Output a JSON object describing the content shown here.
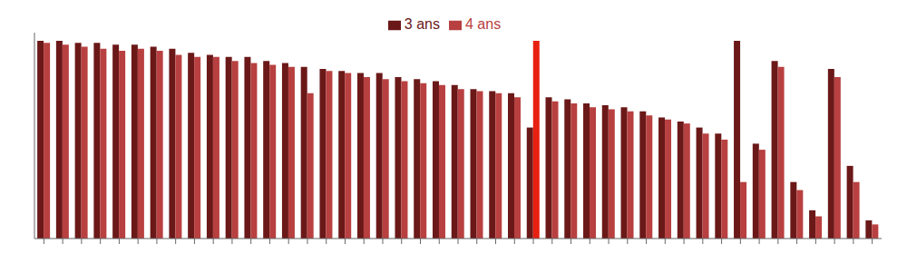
{
  "chart_data": {
    "type": "bar",
    "categories": [
      null,
      null,
      null,
      null,
      null,
      null,
      null,
      null,
      null,
      null,
      null,
      null,
      null,
      null,
      null,
      null,
      null,
      null,
      null,
      null,
      null,
      null,
      null,
      null,
      null,
      null,
      null,
      null,
      null,
      null,
      null,
      null,
      null,
      null,
      null,
      null,
      null,
      null,
      null,
      null,
      null,
      null,
      null,
      null,
      null
    ],
    "series": [
      {
        "name": "3 ans",
        "color": "#6B1818",
        "values": [
          98,
          98,
          97,
          97,
          96,
          96,
          95,
          94,
          92,
          91,
          90,
          90,
          88,
          87,
          85,
          84,
          83,
          82,
          82,
          80,
          79,
          78,
          76,
          74,
          73,
          72,
          55,
          70,
          69,
          67,
          66,
          65,
          63,
          60,
          58,
          55,
          52,
          98,
          47,
          88,
          28,
          14,
          84,
          36,
          9
        ]
      },
      {
        "name": "4 ans",
        "color": "#B84040",
        "colors": [
          "#B84040",
          "#B84040",
          "#B84040",
          "#B84040",
          "#B84040",
          "#B84040",
          "#B84040",
          "#B84040",
          "#B84040",
          "#B84040",
          "#B84040",
          "#B84040",
          "#B84040",
          "#B84040",
          "#B84040",
          "#B84040",
          "#B84040",
          "#B84040",
          "#B84040",
          "#B84040",
          "#B84040",
          "#B84040",
          "#B84040",
          "#B84040",
          "#B84040",
          "#B84040",
          "#E82010",
          "#B84040",
          "#B84040",
          "#B84040",
          "#B84040",
          "#B84040",
          "#B84040",
          "#B84040",
          "#B84040",
          "#B84040",
          "#B84040",
          "#B84040",
          "#B84040",
          "#B84040",
          "#B84040",
          "#B84040",
          "#B84040",
          "#B84040",
          "#B84040"
        ],
        "values": [
          97,
          96,
          95,
          94,
          93,
          94,
          93,
          91,
          90,
          90,
          88,
          87,
          86,
          85,
          72,
          83,
          82,
          80,
          79,
          78,
          77,
          76,
          74,
          73,
          72,
          70,
          98,
          68,
          67,
          65,
          64,
          63,
          61,
          59,
          57,
          52,
          49,
          28,
          44,
          85,
          24,
          11,
          80,
          28,
          7
        ]
      }
    ],
    "ylim": [
      0,
      102
    ],
    "grid": false,
    "legend": "top",
    "tick_labels": false
  }
}
